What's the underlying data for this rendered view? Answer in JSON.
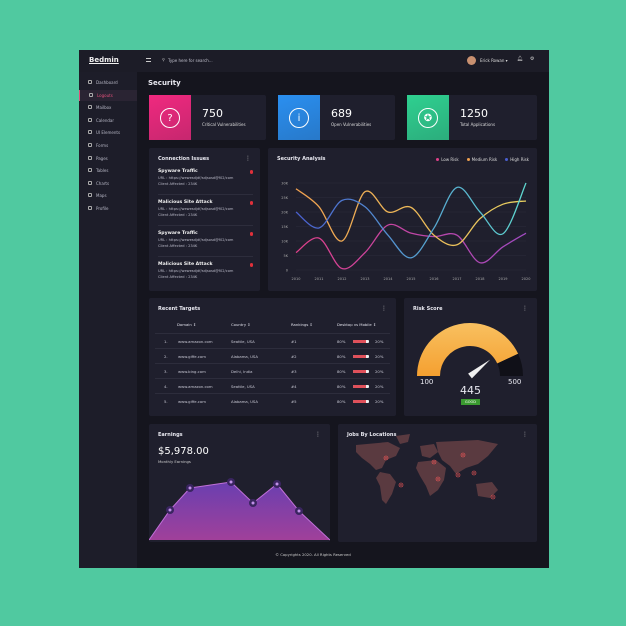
{
  "app": {
    "logo": "Bedmin",
    "search_placeholder": "Type here for search...",
    "user": "Erick Rowan"
  },
  "sidebar": {
    "items": [
      {
        "label": "Dashboard",
        "icon": "dashboard-icon"
      },
      {
        "label": "Logouts",
        "icon": "logout-icon",
        "active": true
      },
      {
        "label": "Mailbox",
        "icon": "mail-icon"
      },
      {
        "label": "Calendar",
        "icon": "calendar-icon"
      },
      {
        "label": "UI Elements",
        "icon": "wrench-icon"
      },
      {
        "label": "Forms",
        "icon": "form-icon"
      },
      {
        "label": "Pages",
        "icon": "pages-icon"
      },
      {
        "label": "Tables",
        "icon": "table-icon"
      },
      {
        "label": "Charts",
        "icon": "chart-icon"
      },
      {
        "label": "Maps",
        "icon": "map-icon"
      },
      {
        "label": "Profile",
        "icon": "user-icon"
      }
    ]
  },
  "page_title": "Security",
  "stats": [
    {
      "value": "750",
      "label": "Critical Vulnerabilities",
      "icon": "question-icon",
      "color": "#f0297f"
    },
    {
      "value": "689",
      "label": "Open Vulnerabilities",
      "icon": "info-icon",
      "color": "#2a8ff0"
    },
    {
      "value": "1250",
      "label": "Total Applications",
      "icon": "lifebuoy-icon",
      "color": "#2fd090"
    }
  ],
  "connection": {
    "title": "Connection Issues",
    "items": [
      {
        "title": "Spyware Traffic",
        "url": "URL : https://wewesdjdf/sdjsosd@f02/com",
        "clients": "Client Affected : 234K"
      },
      {
        "title": "Malicious Site Attack",
        "url": "URL : https://wewesdjdf/sdjsosd@f02/com",
        "clients": "Client Affected : 234K"
      },
      {
        "title": "Spyware Traffic",
        "url": "URL : https://wewesdjdf/sdjsosd@f02/com",
        "clients": "Client Affected : 234K"
      },
      {
        "title": "Malicious Site Attack",
        "url": "URL : https://wewesdjdf/sdjsosd@f02/com",
        "clients": "Client Affected : 234K"
      }
    ]
  },
  "chart_data": {
    "type": "line",
    "title": "Security Analysis",
    "x": [
      "2010",
      "2011",
      "2012",
      "2013",
      "2014",
      "2015",
      "2016",
      "2017",
      "2018",
      "2019",
      "2020"
    ],
    "yticks": [
      "0",
      "5K",
      "10K",
      "15K",
      "20K",
      "25K",
      "30K"
    ],
    "ylim": [
      0,
      30
    ],
    "grid": true,
    "legend": "top-right",
    "series": [
      {
        "name": "Low Risk",
        "color": "#e0408a",
        "values": [
          6,
          11,
          0.5,
          6,
          15.5,
          12.7,
          11.5,
          12,
          2.5,
          8,
          12.7
        ]
      },
      {
        "name": "Medium Risk",
        "color": "#f0a050",
        "values": [
          28,
          21.8,
          10,
          27,
          20,
          21.6,
          12,
          8.7,
          17.7,
          22.7,
          23.8
        ]
      },
      {
        "name": "High Risk",
        "color": "#4a5fd0",
        "values": [
          20,
          14.5,
          24,
          21.8,
          12,
          4.2,
          14.5,
          28.5,
          20,
          12.5,
          30
        ]
      }
    ]
  },
  "targets": {
    "title": "Recent Targets",
    "headers": [
      "Domain ⇕",
      "Country ⇕",
      "Rankings ⇕",
      "Desktop vs Mobile ⇕"
    ],
    "rows": [
      {
        "n": "1.",
        "domain": "www.amazon.com",
        "country": "Seattle, USA",
        "rank": "#1",
        "desktop": "80%",
        "mobile": "20%",
        "pct": 80
      },
      {
        "n": "2.",
        "domain": "www.giffe.com",
        "country": "Alabama, USA",
        "rank": "#2",
        "desktop": "80%",
        "mobile": "20%",
        "pct": 80
      },
      {
        "n": "3.",
        "domain": "www.bing.com",
        "country": "Delhi, India",
        "rank": "#3",
        "desktop": "80%",
        "mobile": "20%",
        "pct": 80
      },
      {
        "n": "4.",
        "domain": "www.amazon.com",
        "country": "Seattle, USA",
        "rank": "#4",
        "desktop": "80%",
        "mobile": "20%",
        "pct": 80
      },
      {
        "n": "5.",
        "domain": "www.giffe.com",
        "country": "Alabama, USA",
        "rank": "#5",
        "desktop": "80%",
        "mobile": "20%",
        "pct": 80
      }
    ]
  },
  "risk": {
    "title": "Risk Score",
    "min": "100",
    "max": "500",
    "value": "445",
    "status": "GOOD",
    "value_num": 445,
    "min_num": 100,
    "max_num": 500
  },
  "earnings": {
    "title": "Earnings",
    "amount": "$5,978.00",
    "label": "Monthly Earnings",
    "values": [
      0,
      30,
      52,
      58,
      37,
      56,
      29,
      0
    ]
  },
  "jobs": {
    "title": "Jobs By Locations"
  },
  "footer": "© Copyrights 2020. All Rights Reserved"
}
